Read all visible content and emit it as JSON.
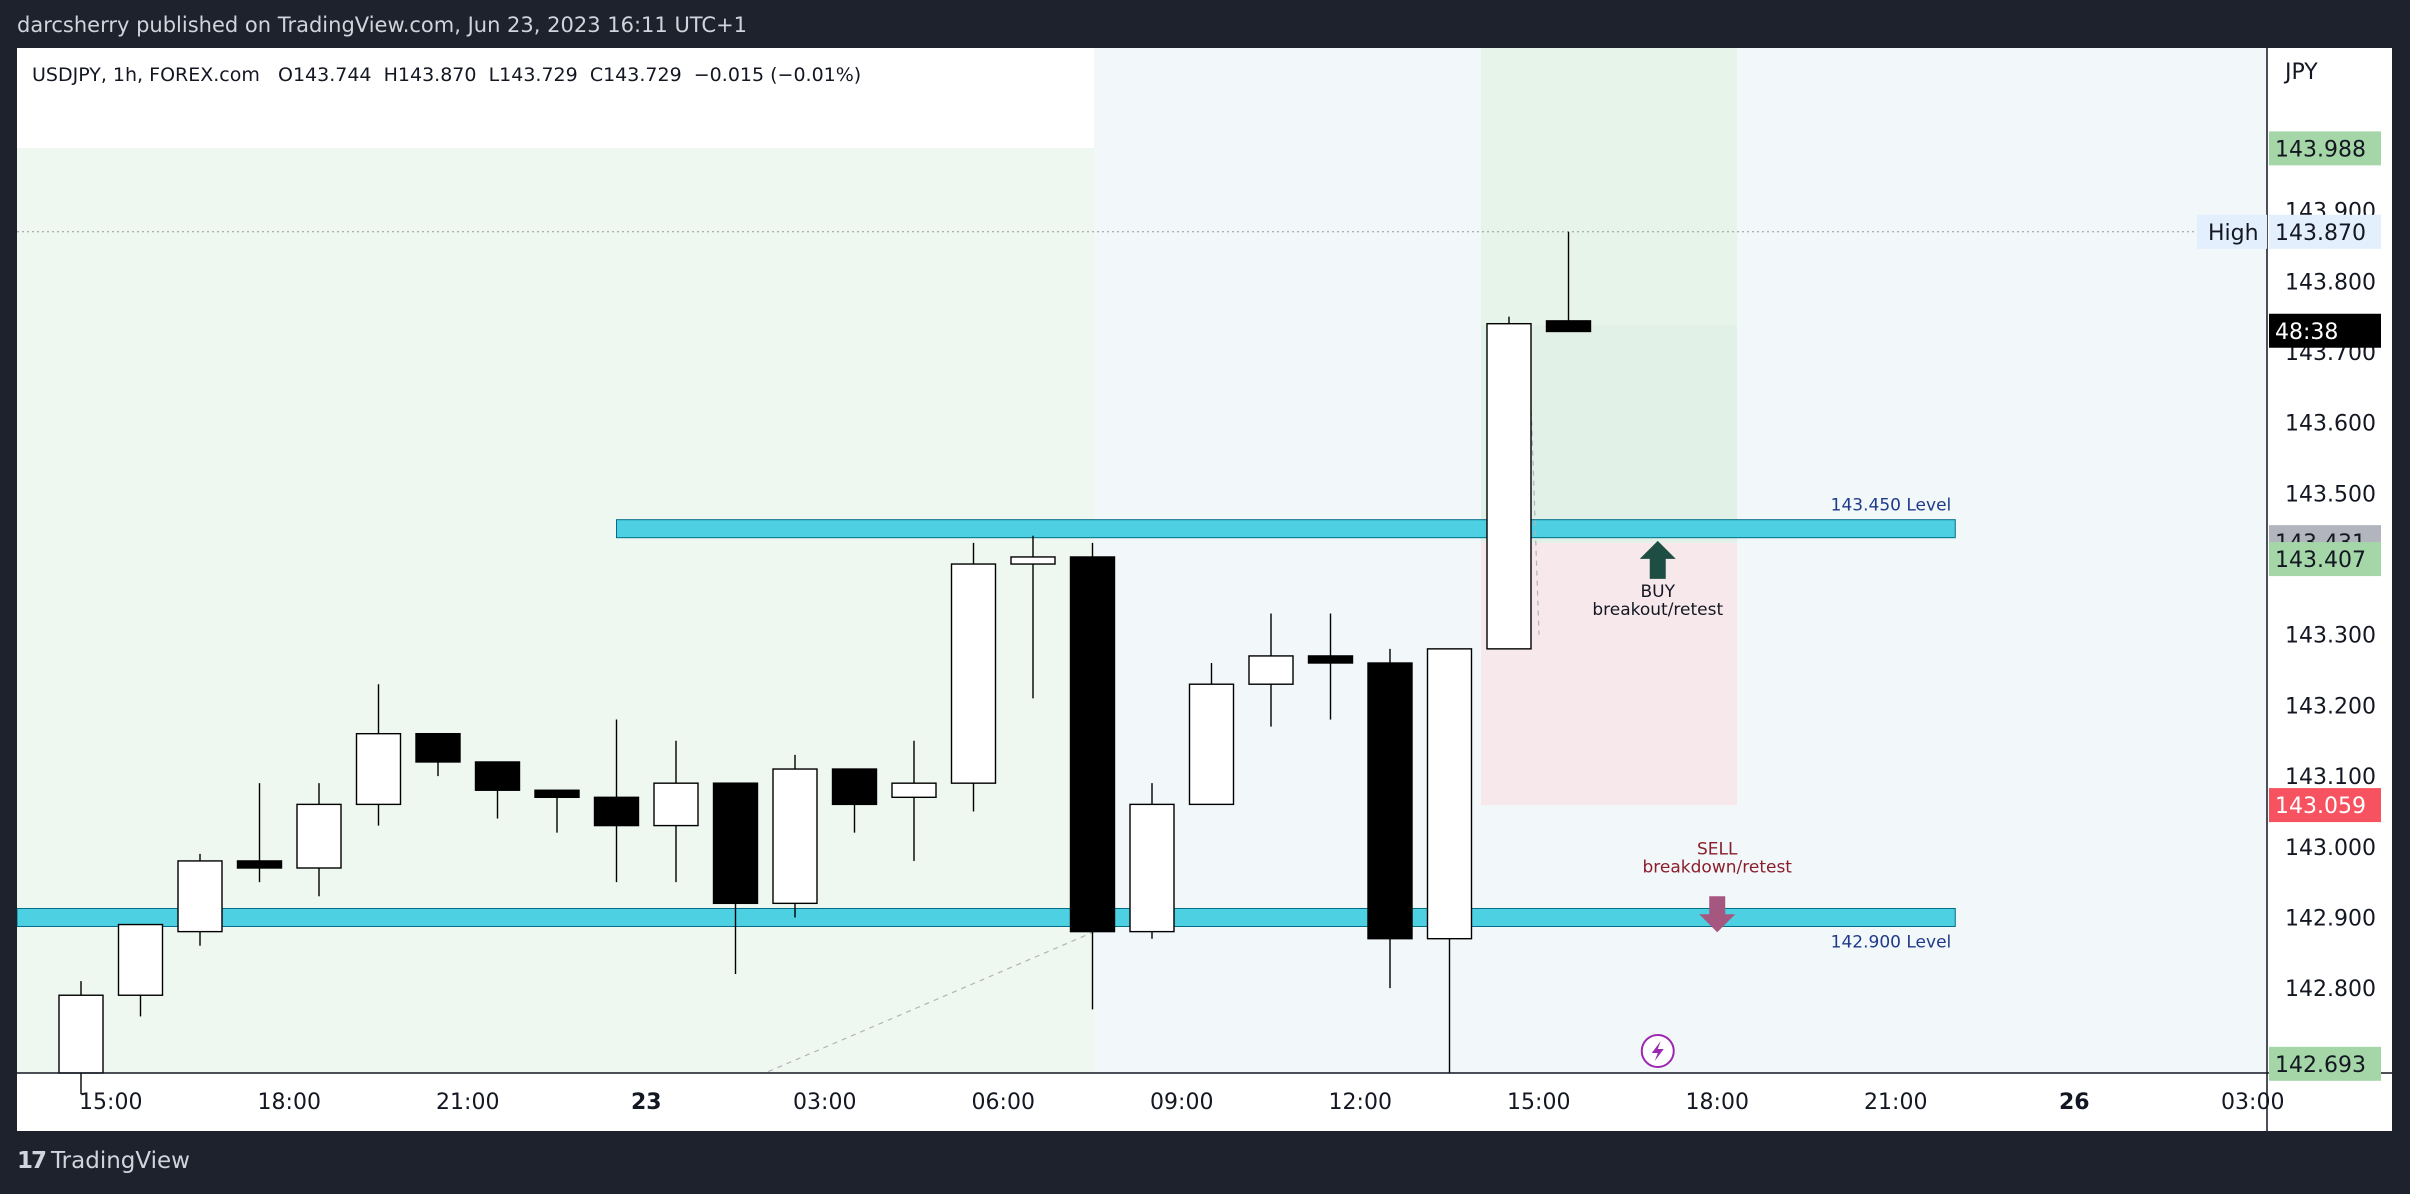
{
  "header": {
    "published_text": "darcsherry published on TradingView.com, Jun 23, 2023 16:11 UTC+1"
  },
  "legend": {
    "symbol": "USDJPY, 1h, FOREX.com",
    "open": "O143.744",
    "high": "H143.870",
    "low": "L143.729",
    "close": "C143.729",
    "change": "−0.015 (−0.01%)"
  },
  "footer": {
    "brand": "TradingView"
  },
  "chart_data": {
    "type": "candlestick",
    "symbol": "USDJPY",
    "interval": "1h",
    "currency": "JPY",
    "y_range": [
      142.68,
      144.13
    ],
    "y_ticks": [
      "143.900",
      "143.800",
      "143.700",
      "143.600",
      "143.500",
      "143.300",
      "143.200",
      "143.100",
      "143.000",
      "142.900",
      "142.800"
    ],
    "x_ticks": [
      {
        "label": "15:00",
        "x": 0.5
      },
      {
        "label": "18:00",
        "x": 3.5
      },
      {
        "label": "21:00",
        "x": 6.5
      },
      {
        "label": "23",
        "x": 9.5
      },
      {
        "label": "03:00",
        "x": 12.5
      },
      {
        "label": "06:00",
        "x": 15.5
      },
      {
        "label": "09:00",
        "x": 18.5
      },
      {
        "label": "12:00",
        "x": 21.5
      },
      {
        "label": "15:00",
        "x": 24.5
      },
      {
        "label": "18:00",
        "x": 27.5
      },
      {
        "label": "21:00",
        "x": 30.5
      },
      {
        "label": "26",
        "x": 33.5
      },
      {
        "label": "03:00",
        "x": 36.5
      }
    ],
    "candles": [
      {
        "o": 142.68,
        "h": 142.81,
        "l": 142.65,
        "c": 142.79
      },
      {
        "o": 142.79,
        "h": 142.89,
        "l": 142.76,
        "c": 142.89
      },
      {
        "o": 142.88,
        "h": 142.99,
        "l": 142.86,
        "c": 142.98
      },
      {
        "o": 142.98,
        "h": 143.09,
        "l": 142.95,
        "c": 142.97
      },
      {
        "o": 142.97,
        "h": 143.09,
        "l": 142.93,
        "c": 143.06
      },
      {
        "o": 143.06,
        "h": 143.23,
        "l": 143.03,
        "c": 143.16
      },
      {
        "o": 143.16,
        "h": 143.16,
        "l": 143.1,
        "c": 143.12
      },
      {
        "o": 143.12,
        "h": 143.12,
        "l": 143.04,
        "c": 143.08
      },
      {
        "o": 143.08,
        "h": 143.08,
        "l": 143.02,
        "c": 143.07
      },
      {
        "o": 143.07,
        "h": 143.18,
        "l": 142.95,
        "c": 143.03
      },
      {
        "o": 143.03,
        "h": 143.15,
        "l": 142.95,
        "c": 143.09
      },
      {
        "o": 143.09,
        "h": 143.09,
        "l": 142.82,
        "c": 142.92
      },
      {
        "o": 142.92,
        "h": 143.13,
        "l": 142.9,
        "c": 143.11
      },
      {
        "o": 143.11,
        "h": 143.11,
        "l": 143.02,
        "c": 143.06
      },
      {
        "o": 143.07,
        "h": 143.15,
        "l": 142.98,
        "c": 143.09
      },
      {
        "o": 143.09,
        "h": 143.43,
        "l": 143.05,
        "c": 143.4
      },
      {
        "o": 143.4,
        "h": 143.44,
        "l": 143.21,
        "c": 143.41
      },
      {
        "o": 143.41,
        "h": 143.43,
        "l": 142.77,
        "c": 142.88
      },
      {
        "o": 142.88,
        "h": 143.09,
        "l": 142.87,
        "c": 143.06
      },
      {
        "o": 143.06,
        "h": 143.26,
        "l": 143.06,
        "c": 143.23
      },
      {
        "o": 143.23,
        "h": 143.33,
        "l": 143.17,
        "c": 143.27
      },
      {
        "o": 143.27,
        "h": 143.33,
        "l": 143.18,
        "c": 143.26
      },
      {
        "o": 143.26,
        "h": 143.28,
        "l": 142.8,
        "c": 142.87
      },
      {
        "o": 142.87,
        "h": 143.28,
        "l": 142.68,
        "c": 143.28
      },
      {
        "o": 143.28,
        "h": 143.75,
        "l": 143.28,
        "c": 143.74
      },
      {
        "o": 143.744,
        "h": 143.87,
        "l": 143.729,
        "c": 143.729
      }
    ],
    "levels": [
      {
        "price": 143.45,
        "label": "143.450 Level",
        "x_from": 9.0,
        "x_to": 31.5
      },
      {
        "price": 142.9,
        "label": "142.900 Level",
        "x_from": -1.0,
        "x_to": 31.5
      }
    ],
    "annotations": [
      {
        "text1": "BUY",
        "text2": "breakout/retest",
        "direction": "up",
        "x": 26.5,
        "price": 143.43,
        "color": "#1e4d43"
      },
      {
        "text1": "SELL",
        "text2": "breakdown/retest",
        "direction": "down",
        "x": 27.5,
        "price": 142.93,
        "color": "#a65780"
      }
    ],
    "high_line": {
      "label": "High",
      "price": 143.87
    },
    "price_labels": [
      {
        "text": "143.988",
        "price": 143.988,
        "bg": "#a5d6a7",
        "fg": "#131722"
      },
      {
        "text": "143.870",
        "price": 143.87,
        "bg": "#e3effd",
        "fg": "#131722"
      },
      {
        "text": "48:38",
        "price": 143.73,
        "bg": "#000000",
        "fg": "#ffffff"
      },
      {
        "text": "143.431",
        "price": 143.431,
        "bg": "#b2b5be",
        "fg": "#131722"
      },
      {
        "text": "143.407",
        "price": 143.407,
        "bg": "#a5d6a7",
        "fg": "#131722"
      },
      {
        "text": "143.059",
        "price": 143.059,
        "bg": "#f7525f",
        "fg": "#ffffff"
      },
      {
        "text": "142.693",
        "price": 142.693,
        "bg": "#a5d6a7",
        "fg": "#131722"
      }
    ],
    "colors": {
      "up": "#ffffff",
      "down": "#000000",
      "level": "#4dd0e1",
      "level_text": "#1e3a8a"
    }
  }
}
